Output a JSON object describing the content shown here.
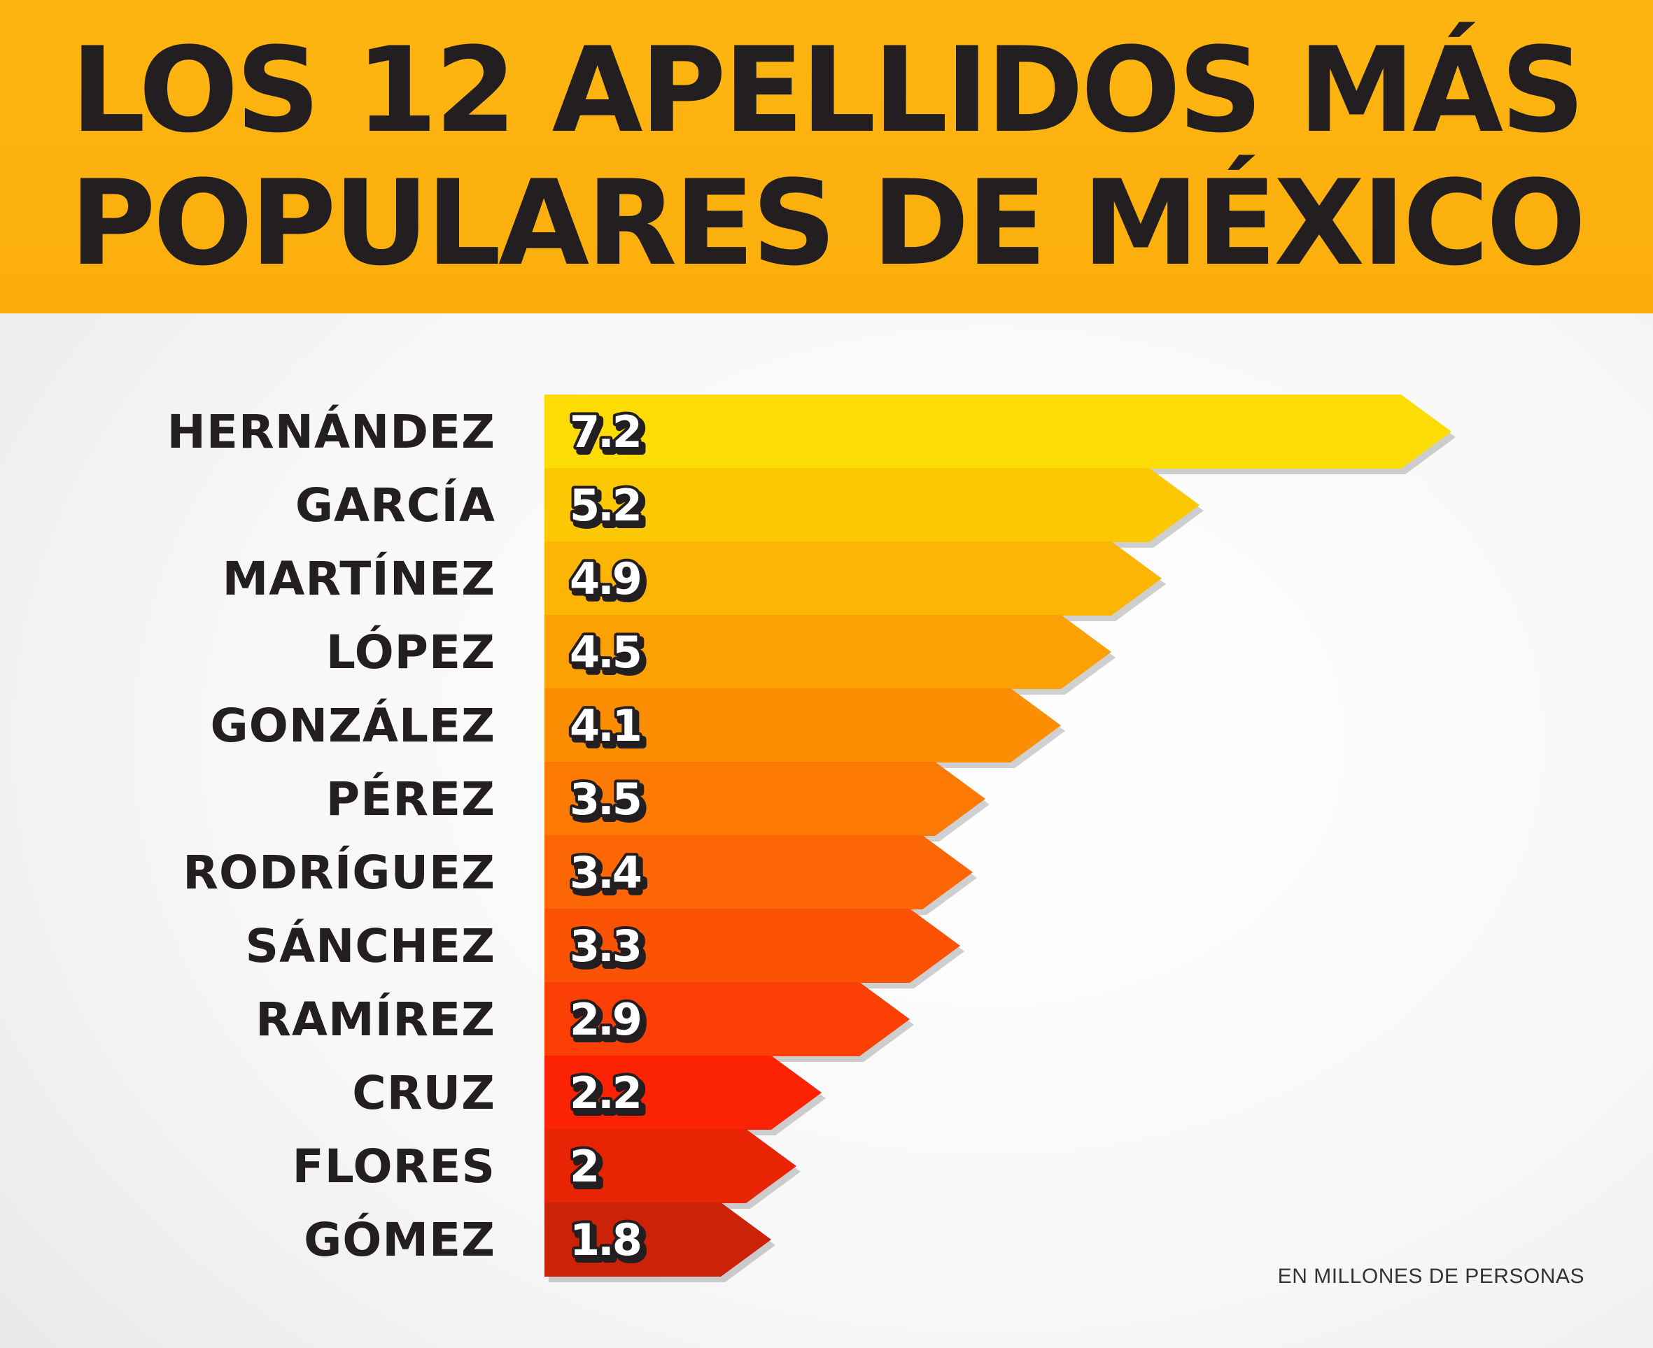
{
  "header": {
    "title_line1": "LOS 12 APELLIDOS MÁS",
    "title_line2": "POPULARES DE MÉXICO"
  },
  "footnote": "EN MILLONES DE PERSONAS",
  "chart_data": {
    "type": "bar",
    "orientation": "horizontal",
    "title": "LOS 12 APELLIDOS MÁS POPULARES DE MÉXICO",
    "unit": "EN MILLONES DE PERSONAS",
    "categories": [
      "HERNÁNDEZ",
      "GARCÍA",
      "MARTÍNEZ",
      "LÓPEZ",
      "GONZÁLEZ",
      "PÉREZ",
      "RODRÍGUEZ",
      "SÁNCHEZ",
      "RAMÍREZ",
      "CRUZ",
      "FLORES",
      "GÓMEZ"
    ],
    "values": [
      7.2,
      5.2,
      4.9,
      4.5,
      4.1,
      3.5,
      3.4,
      3.3,
      2.9,
      2.2,
      2,
      1.8
    ],
    "labels": [
      "7.2",
      "5.2",
      "4.9",
      "4.5",
      "4.1",
      "3.5",
      "3.4",
      "3.3",
      "2.9",
      "2.2",
      "2",
      "1.8"
    ],
    "colors": [
      "#fcdc04",
      "#fcc804",
      "#fcb504",
      "#fca104",
      "#fc8e04",
      "#fc7a04",
      "#fc6604",
      "#fc5204",
      "#fc3f04",
      "#fc2204",
      "#e82404",
      "#cc2208"
    ],
    "grid": false,
    "legend": "none"
  }
}
